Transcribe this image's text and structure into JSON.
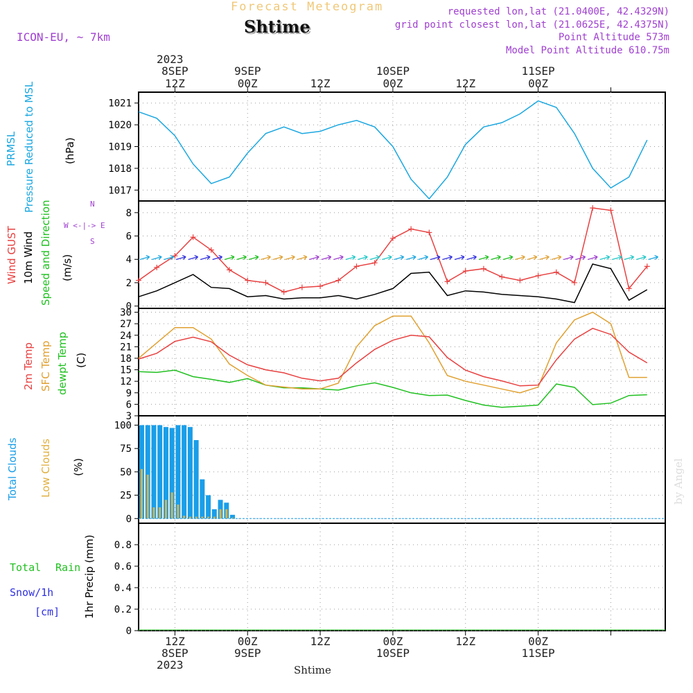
{
  "header": {
    "supertitle": "Forecast Meteogram",
    "location": "Shtime",
    "model": "ICON-EU, ~ 7km",
    "requested": "requested lon,lat (21.0400E, 42.4329N)",
    "gridpoint": "grid point closest lon,lat (21.0625E, 42.4375N)",
    "point_alt": "Point Altitude 573m",
    "model_alt": "Model Point Altitude 610.75m"
  },
  "xaxis": {
    "year": "2023",
    "top_ticks": [
      {
        "l1": "8SEP",
        "l2": "12Z"
      },
      {
        "l1": "9SEP",
        "l2": "00Z"
      },
      {
        "l1": "",
        "l2": "12Z"
      },
      {
        "l1": "10SEP",
        "l2": "00Z"
      },
      {
        "l1": "",
        "l2": "12Z"
      },
      {
        "l1": "11SEP",
        "l2": "00Z"
      }
    ],
    "bottom_ticks": [
      {
        "l1": "12Z",
        "l2": "8SEP"
      },
      {
        "l1": "00Z",
        "l2": "9SEP"
      },
      {
        "l1": "12Z",
        "l2": ""
      },
      {
        "l1": "00Z",
        "l2": "10SEP"
      },
      {
        "l1": "12Z",
        "l2": ""
      },
      {
        "l1": "00Z",
        "l2": "11SEP"
      }
    ],
    "bottom_label": "Shtime"
  },
  "labels": {
    "prmsl_1": "PRMSL",
    "prmsl_2": "Pressure Reduced to MSL",
    "prmsl_unit": "(hPa)",
    "wind_1": "Wind GUST",
    "wind_2": "10m Wind",
    "wind_3": "Speed and Direction",
    "wind_unit": "(m/s)",
    "compass_n": "N",
    "compass_s": "S",
    "compass_we": "W <-|-> E",
    "temp_1": "2m Temp",
    "temp_2": "SFC Temp",
    "temp_3": "dewpt Temp",
    "temp_unit": "(C)",
    "cloud_1": "Total Clouds",
    "cloud_2": "Low Clouds",
    "cloud_unit": "(%)",
    "precip_1": "Total",
    "precip_2": "Rain",
    "precip_3": "Snow/1h",
    "precip_4": "[cm]",
    "precip_axis": "1hr Precip (mm)",
    "credit": "by Angel"
  },
  "colors": {
    "pressure": "#1aa7e0",
    "gust": "#e84040",
    "wind": "#000000",
    "t2m": "#e84040",
    "sfc": "#e0a030",
    "dewpt": "#20c020",
    "total_cloud": "#1a9ee8",
    "low_cloud": "#e0b040",
    "purple": "#a040d0",
    "green": "#20c020",
    "blue": "#3030e0"
  },
  "chart_data": [
    {
      "type": "line",
      "title": "PRMSL Pressure Reduced to MSL",
      "ylabel": "hPa",
      "ylim": [
        1016.5,
        1021.5
      ],
      "yticks": [
        1017,
        1018,
        1019,
        1020,
        1021
      ],
      "x_hours": [
        0,
        3,
        6,
        9,
        12,
        15,
        18,
        21,
        24,
        27,
        30,
        33,
        36,
        39,
        42,
        45,
        48,
        51,
        54,
        57,
        60,
        63,
        66,
        69,
        72,
        75,
        78,
        81,
        84
      ],
      "series": [
        {
          "name": "PRMSL",
          "values": [
            1020.6,
            1020.3,
            1019.5,
            1018.2,
            1017.3,
            1017.6,
            1018.7,
            1019.6,
            1019.9,
            1019.6,
            1019.7,
            1020.0,
            1020.2,
            1019.9,
            1019.0,
            1017.5,
            1016.6,
            1017.6,
            1019.1,
            1019.9,
            1020.1,
            1020.5,
            1021.1,
            1020.8,
            1019.6,
            1018.0,
            1017.1,
            1017.6,
            1019.3
          ]
        }
      ]
    },
    {
      "type": "line",
      "title": "Wind GUST / 10m Wind Speed and Direction",
      "ylabel": "m/s",
      "ylim": [
        -0.2,
        9
      ],
      "yticks": [
        0,
        2,
        4,
        6,
        8
      ],
      "x_hours": [
        0,
        3,
        6,
        9,
        12,
        15,
        18,
        21,
        24,
        27,
        30,
        33,
        36,
        39,
        42,
        45,
        48,
        51,
        54,
        57,
        60,
        63,
        66,
        69,
        72,
        75,
        78,
        81,
        84
      ],
      "series": [
        {
          "name": "Wind GUST",
          "values": [
            2.2,
            3.3,
            4.3,
            5.9,
            4.8,
            3.1,
            2.2,
            2.0,
            1.2,
            1.6,
            1.7,
            2.2,
            3.4,
            3.7,
            5.8,
            6.6,
            6.3,
            2.1,
            3.0,
            3.2,
            2.5,
            2.2,
            2.6,
            2.9,
            2.0,
            8.4,
            8.2,
            1.5,
            3.4
          ]
        },
        {
          "name": "10m Wind",
          "values": [
            0.8,
            1.3,
            2.0,
            2.7,
            1.6,
            1.5,
            0.8,
            0.9,
            0.6,
            0.7,
            0.7,
            0.9,
            0.6,
            1.0,
            1.5,
            2.8,
            2.9,
            0.9,
            1.3,
            1.2,
            1.0,
            0.9,
            0.8,
            0.6,
            0.3,
            3.6,
            3.2,
            0.5,
            1.4
          ]
        }
      ]
    },
    {
      "type": "line",
      "title": "2m Temp / SFC Temp / dewpt Temp",
      "ylabel": "C",
      "ylim": [
        3,
        31
      ],
      "yticks": [
        3,
        6,
        9,
        12,
        15,
        18,
        21,
        24,
        27,
        30
      ],
      "x_hours": [
        0,
        3,
        6,
        9,
        12,
        15,
        18,
        21,
        24,
        27,
        30,
        33,
        36,
        39,
        42,
        45,
        48,
        51,
        54,
        57,
        60,
        63,
        66,
        69,
        72,
        75,
        78,
        81,
        84
      ],
      "series": [
        {
          "name": "2m Temp",
          "values": [
            17.8,
            19.3,
            22.4,
            23.5,
            22.3,
            18.8,
            16.3,
            15.0,
            14.2,
            12.8,
            12.1,
            12.8,
            16.8,
            20.3,
            22.7,
            24.0,
            23.6,
            18.2,
            14.9,
            13.2,
            12.1,
            10.8,
            11.0,
            17.6,
            23.0,
            25.8,
            24.2,
            19.6,
            16.8
          ]
        },
        {
          "name": "SFC Temp",
          "values": [
            18.0,
            22.0,
            26.0,
            26.0,
            23.0,
            16.5,
            13.5,
            11.0,
            10.5,
            10.0,
            10.0,
            11.5,
            21.0,
            26.5,
            29.0,
            29.0,
            22.0,
            13.5,
            12.0,
            11.0,
            10.0,
            9.0,
            10.5,
            22.0,
            28.0,
            30.0,
            27.0,
            13.0,
            13.0
          ]
        },
        {
          "name": "dewpt Temp",
          "values": [
            14.5,
            14.3,
            14.9,
            13.2,
            12.5,
            11.7,
            12.7,
            11.0,
            10.3,
            10.3,
            10.0,
            9.7,
            10.8,
            11.6,
            10.4,
            9.0,
            8.3,
            8.4,
            7.0,
            5.8,
            5.2,
            5.5,
            5.8,
            11.3,
            10.4,
            5.9,
            6.3,
            8.3,
            8.5
          ]
        }
      ]
    },
    {
      "type": "bar",
      "title": "Total Clouds / Low Clouds",
      "ylabel": "%",
      "ylim": [
        -5,
        110
      ],
      "yticks": [
        0,
        25,
        50,
        75,
        100
      ],
      "x_hours": [
        0,
        1,
        2,
        3,
        4,
        5,
        6,
        7,
        8,
        9,
        10,
        11,
        12,
        13,
        14,
        15,
        16,
        17,
        18,
        19,
        20,
        21,
        22,
        23,
        24
      ],
      "series": [
        {
          "name": "Total Clouds",
          "values": [
            100,
            100,
            100,
            100,
            98,
            97,
            100,
            100,
            98,
            84,
            42,
            25,
            10,
            20,
            17,
            4,
            0,
            0,
            0,
            0,
            0,
            0,
            0,
            0,
            0
          ]
        },
        {
          "name": "Low Clouds",
          "values": [
            53,
            47,
            12,
            12,
            20,
            28,
            15,
            3,
            2,
            2,
            2,
            2,
            2,
            10,
            10,
            1,
            0,
            0,
            0,
            0,
            0,
            0,
            0,
            0,
            0
          ]
        }
      ]
    },
    {
      "type": "line",
      "title": "1hr Precip",
      "ylabel": "1hr Precip (mm)",
      "ylim": [
        0,
        1.0
      ],
      "yticks": [
        0,
        0.2,
        0.4,
        0.6,
        0.8
      ],
      "series": [
        {
          "name": "Total Rain",
          "values": [
            0,
            0,
            0,
            0,
            0,
            0,
            0,
            0,
            0,
            0,
            0,
            0,
            0,
            0,
            0,
            0,
            0,
            0,
            0,
            0,
            0,
            0,
            0,
            0,
            0,
            0,
            0,
            0,
            0
          ]
        }
      ]
    }
  ]
}
